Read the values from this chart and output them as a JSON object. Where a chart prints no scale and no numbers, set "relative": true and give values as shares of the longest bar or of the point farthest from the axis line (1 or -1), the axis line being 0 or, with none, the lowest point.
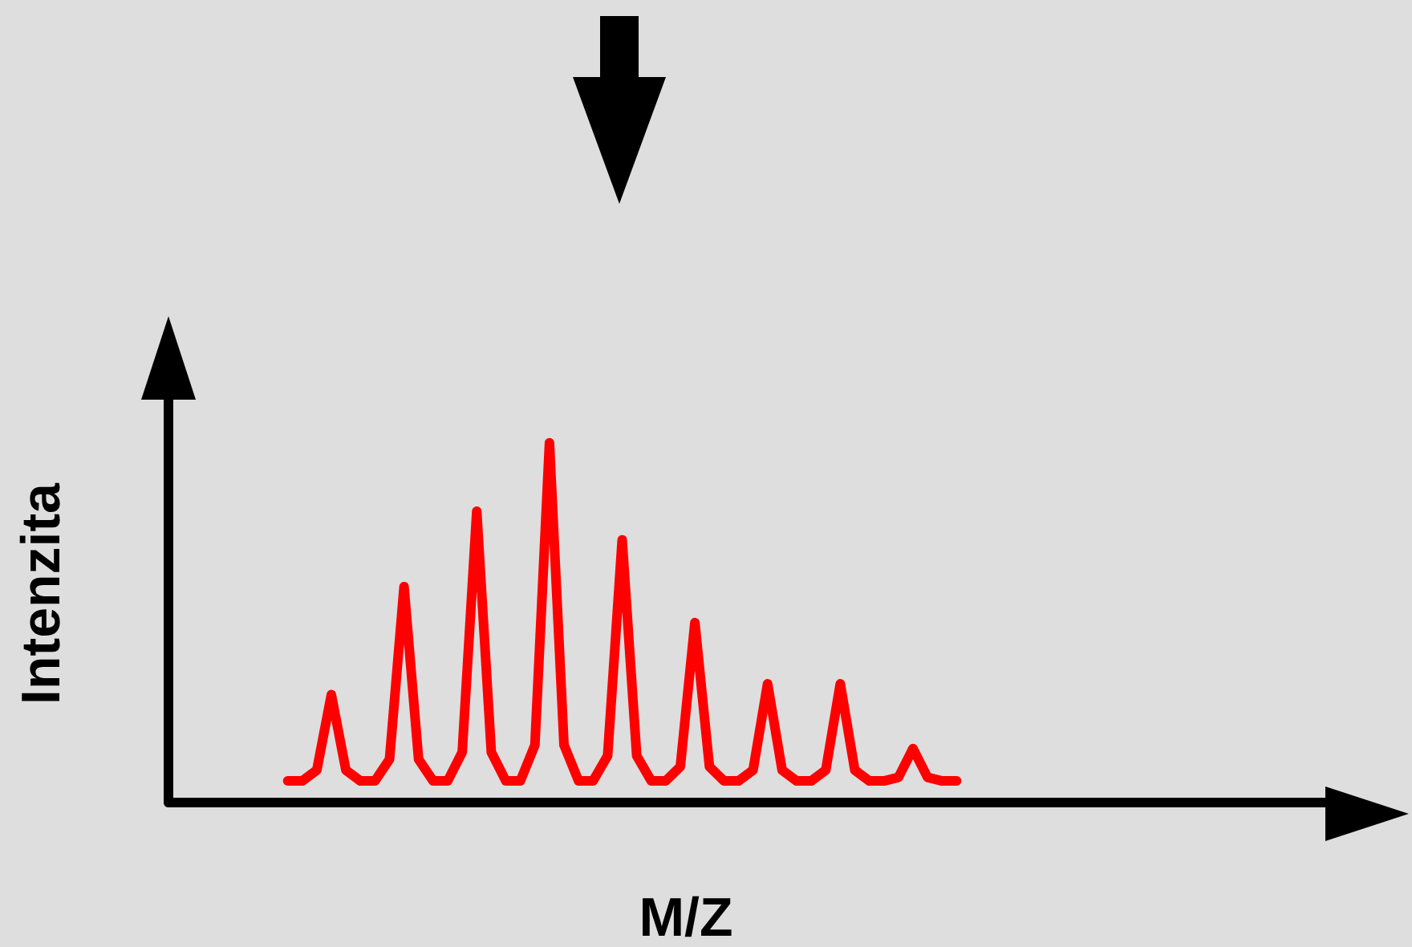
{
  "chart_data": {
    "type": "line",
    "xlabel": "M/Z",
    "ylabel": "Intenzita",
    "relative": true,
    "grid": false,
    "marker": "none",
    "line_style": "solid",
    "tick_labels": false,
    "categories": [
      null,
      null,
      null,
      null,
      null,
      null,
      null,
      null,
      null,
      null,
      null,
      null,
      null,
      null,
      null,
      null,
      null,
      null,
      null,
      null,
      null,
      null,
      null,
      null,
      null,
      null,
      null,
      null,
      null,
      null,
      null,
      null,
      null,
      null,
      null,
      null,
      null,
      null,
      null,
      null,
      null,
      null,
      null,
      null,
      null,
      null,
      null
    ],
    "series": [
      {
        "color": "#ff0000",
        "values": [
          0.06,
          0.06,
          0.09,
          0.3,
          0.09,
          0.06,
          0.06,
          0.12,
          0.6,
          0.12,
          0.06,
          0.06,
          0.14,
          0.81,
          0.14,
          0.06,
          0.06,
          0.16,
          1.0,
          0.16,
          0.06,
          0.06,
          0.13,
          0.73,
          0.13,
          0.06,
          0.06,
          0.1,
          0.5,
          0.1,
          0.06,
          0.06,
          0.09,
          0.33,
          0.09,
          0.06,
          0.06,
          0.09,
          0.33,
          0.09,
          0.06,
          0.06,
          0.07,
          0.15,
          0.07,
          0.06,
          0.06
        ]
      }
    ]
  }
}
